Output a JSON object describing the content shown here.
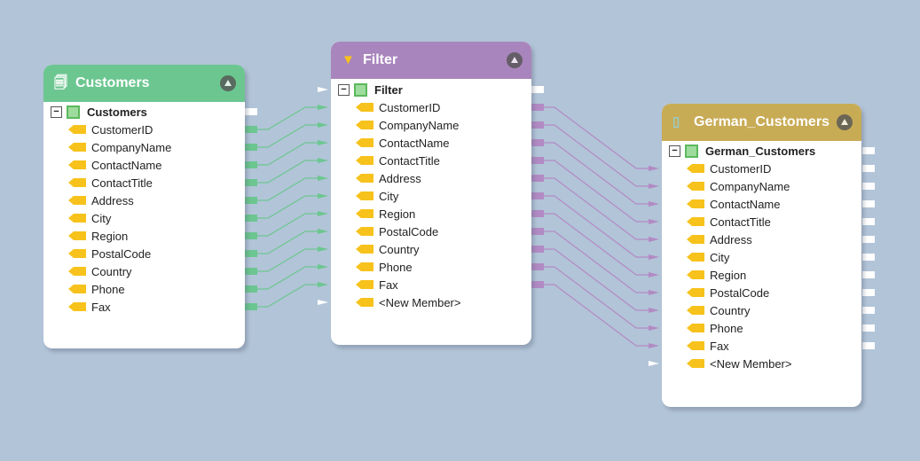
{
  "colors": {
    "customers": "#6cc690",
    "filter": "#a985bd",
    "german": "#c8ab55",
    "green_link": "#6cc690",
    "purple_link": "#b28ac4"
  },
  "customers": {
    "title": "Customers",
    "root": "Customers",
    "icon": "table-icon",
    "fields": [
      "CustomerID",
      "CompanyName",
      "ContactName",
      "ContactTitle",
      "Address",
      "City",
      "Region",
      "PostalCode",
      "Country",
      "Phone",
      "Fax"
    ]
  },
  "filter": {
    "title": "Filter",
    "root": "Filter",
    "icon": "funnel-icon",
    "fields": [
      "CustomerID",
      "CompanyName",
      "ContactName",
      "ContactTitle",
      "Address",
      "City",
      "Region",
      "PostalCode",
      "Country",
      "Phone",
      "Fax",
      "<New Member>"
    ]
  },
  "german": {
    "title": "German_Customers",
    "root": "German_Customers",
    "icon": "target-icon",
    "fields": [
      "CustomerID",
      "CompanyName",
      "ContactName",
      "ContactTitle",
      "Address",
      "City",
      "Region",
      "PostalCode",
      "Country",
      "Phone",
      "Fax",
      "<New Member>"
    ]
  }
}
